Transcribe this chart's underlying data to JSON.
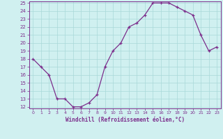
{
  "x": [
    0,
    1,
    2,
    3,
    4,
    5,
    6,
    7,
    8,
    9,
    10,
    11,
    12,
    13,
    14,
    15,
    16,
    17,
    18,
    19,
    20,
    21,
    22,
    23
  ],
  "y": [
    18,
    17,
    16,
    13,
    13,
    12,
    12,
    12.5,
    13.5,
    17,
    19,
    20,
    22,
    22.5,
    23.5,
    25,
    25,
    25,
    24.5,
    24,
    23.5,
    21,
    19,
    19.5
  ],
  "line_color": "#7b2d8b",
  "marker": "+",
  "bg_color": "#d0f0f0",
  "grid_color": "#a8d8d8",
  "xlabel": "Windchill (Refroidissement éolien,°C)",
  "xlabel_color": "#7b2d8b",
  "tick_color": "#7b2d8b",
  "ylim": [
    12,
    25
  ],
  "xlim": [
    -0.5,
    23.5
  ],
  "yticks": [
    12,
    13,
    14,
    15,
    16,
    17,
    18,
    19,
    20,
    21,
    22,
    23,
    24,
    25
  ],
  "xticks": [
    0,
    1,
    2,
    3,
    4,
    5,
    6,
    7,
    8,
    9,
    10,
    11,
    12,
    13,
    14,
    15,
    16,
    17,
    18,
    19,
    20,
    21,
    22,
    23
  ]
}
